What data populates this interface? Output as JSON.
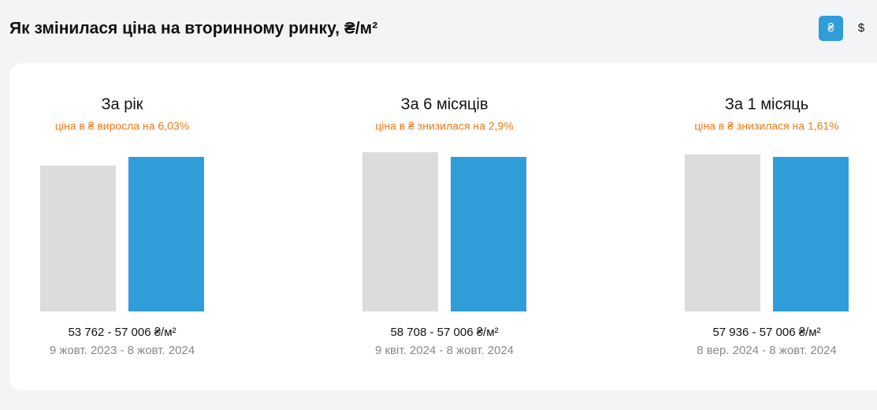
{
  "header": {
    "title": "Як змінилася ціна на вторинному ринку, ₴/м²",
    "currency_buttons": [
      "₴",
      "$"
    ]
  },
  "bar_colors": [
    "#dcdcdc",
    "#2e9dd8"
  ],
  "ylim": [
    0,
    57000
  ],
  "cards": [
    {
      "title": "За рік",
      "change": "ціна в ₴ виросла на 6,03%",
      "values": [
        53762,
        57006
      ],
      "range_label": "53 762 - 57 006 ₴/м²",
      "period": "9 жовт. 2023 - 8 жовт. 2024"
    },
    {
      "title": "За 6 місяців",
      "change": "ціна в ₴ знизилася на 2,9%",
      "values": [
        58708,
        57006
      ],
      "range_label": "58 708 - 57 006 ₴/м²",
      "period": "9 квіт. 2024 - 8 жовт. 2024"
    },
    {
      "title": "За 1 місяць",
      "change": "ціна в ₴ знизилася на 1,61%",
      "values": [
        57936,
        57006
      ],
      "range_label": "57 936 - 57 006 ₴/м²",
      "period": "8 вер. 2024 - 8 жовт. 2024"
    }
  ]
}
